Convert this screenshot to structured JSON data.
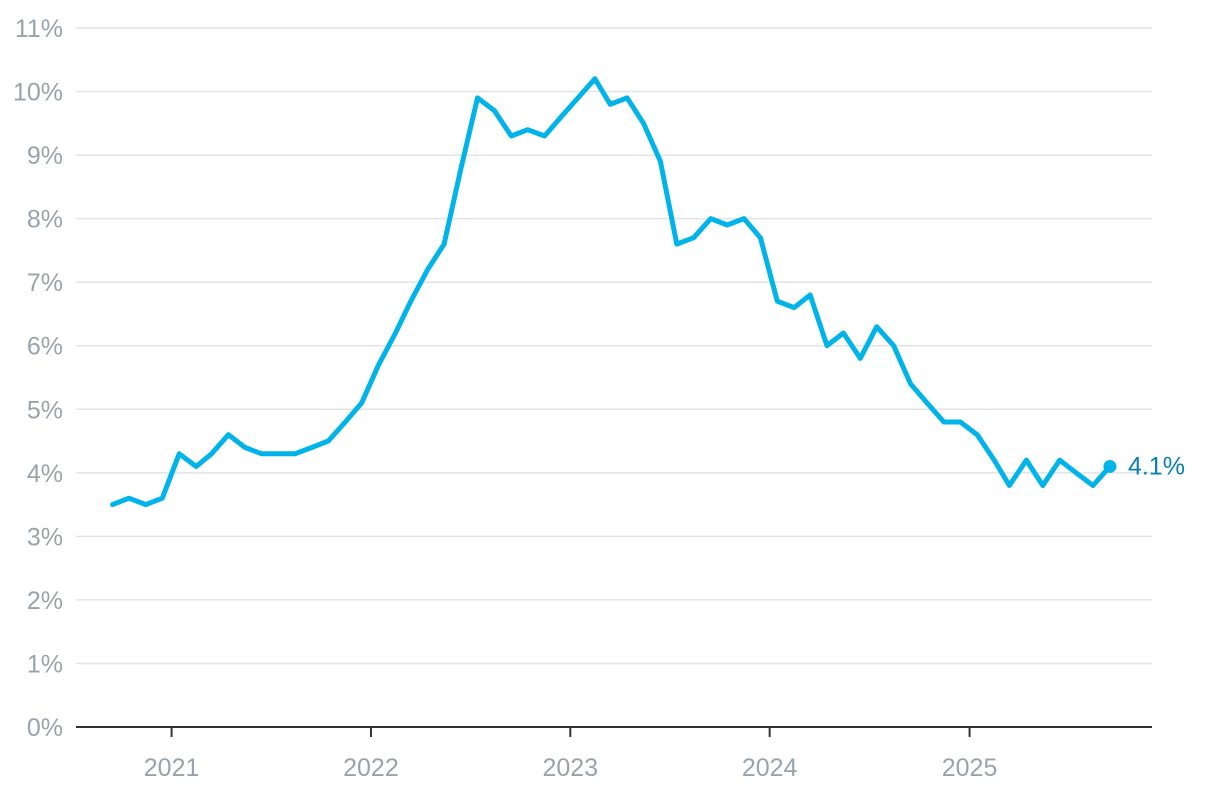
{
  "chart_data": {
    "type": "line",
    "title": "",
    "xlabel": "",
    "ylabel": "",
    "ylim": [
      0,
      11
    ],
    "yticks": [
      0,
      1,
      2,
      3,
      4,
      5,
      6,
      7,
      8,
      9,
      10,
      11
    ],
    "ytick_labels": [
      "0%",
      "1%",
      "2%",
      "3%",
      "4%",
      "5%",
      "6%",
      "7%",
      "8%",
      "9%",
      "10%",
      "11%"
    ],
    "xlim": [
      "2020-07-10",
      "2025-12-01"
    ],
    "xticks": [
      "2021-01-01",
      "2022-01-01",
      "2023-01-01",
      "2024-01-01",
      "2025-01-01"
    ],
    "xtick_labels": [
      "2021",
      "2022",
      "2023",
      "2024",
      "2025"
    ],
    "grid": true,
    "series": [
      {
        "color": "#00b4ea",
        "end_label": "4.1%",
        "end_label_color": "#0a7fb3",
        "x": [
          "2020-09",
          "2020-10",
          "2020-11",
          "2020-12",
          "2021-01",
          "2021-02",
          "2021-03",
          "2021-04",
          "2021-05",
          "2021-06",
          "2021-07",
          "2021-08",
          "2021-09",
          "2021-10",
          "2021-11",
          "2021-12",
          "2022-01",
          "2022-02",
          "2022-03",
          "2022-04",
          "2022-05",
          "2022-06",
          "2022-07",
          "2022-08",
          "2022-09",
          "2022-10",
          "2022-11",
          "2022-12",
          "2023-01",
          "2023-02",
          "2023-03",
          "2023-04",
          "2023-05",
          "2023-06",
          "2023-07",
          "2023-08",
          "2023-09",
          "2023-10",
          "2023-11",
          "2023-12",
          "2024-01",
          "2024-02",
          "2024-03",
          "2024-04",
          "2024-05",
          "2024-06",
          "2024-07",
          "2024-08",
          "2024-09",
          "2024-10",
          "2024-11",
          "2024-12",
          "2025-01",
          "2025-02",
          "2025-03",
          "2025-04",
          "2025-05",
          "2025-06",
          "2025-07",
          "2025-08",
          "2025-09"
        ],
        "values": [
          3.5,
          3.6,
          3.5,
          3.6,
          4.3,
          4.1,
          4.3,
          4.6,
          4.4,
          4.3,
          4.3,
          4.3,
          4.4,
          4.5,
          4.8,
          5.1,
          5.7,
          6.2,
          6.7,
          7.2,
          7.6,
          8.8,
          9.9,
          9.7,
          9.3,
          9.4,
          9.3,
          9.6,
          9.9,
          10.2,
          9.8,
          9.9,
          9.5,
          8.9,
          7.6,
          7.7,
          8.0,
          7.9,
          8.0,
          7.7,
          6.7,
          6.6,
          6.8,
          6.0,
          6.2,
          5.8,
          6.3,
          6.0,
          5.4,
          5.1,
          4.8,
          4.8,
          4.6,
          4.2,
          3.8,
          4.2,
          3.8,
          4.2,
          4.0,
          3.8,
          4.1
        ]
      }
    ]
  }
}
